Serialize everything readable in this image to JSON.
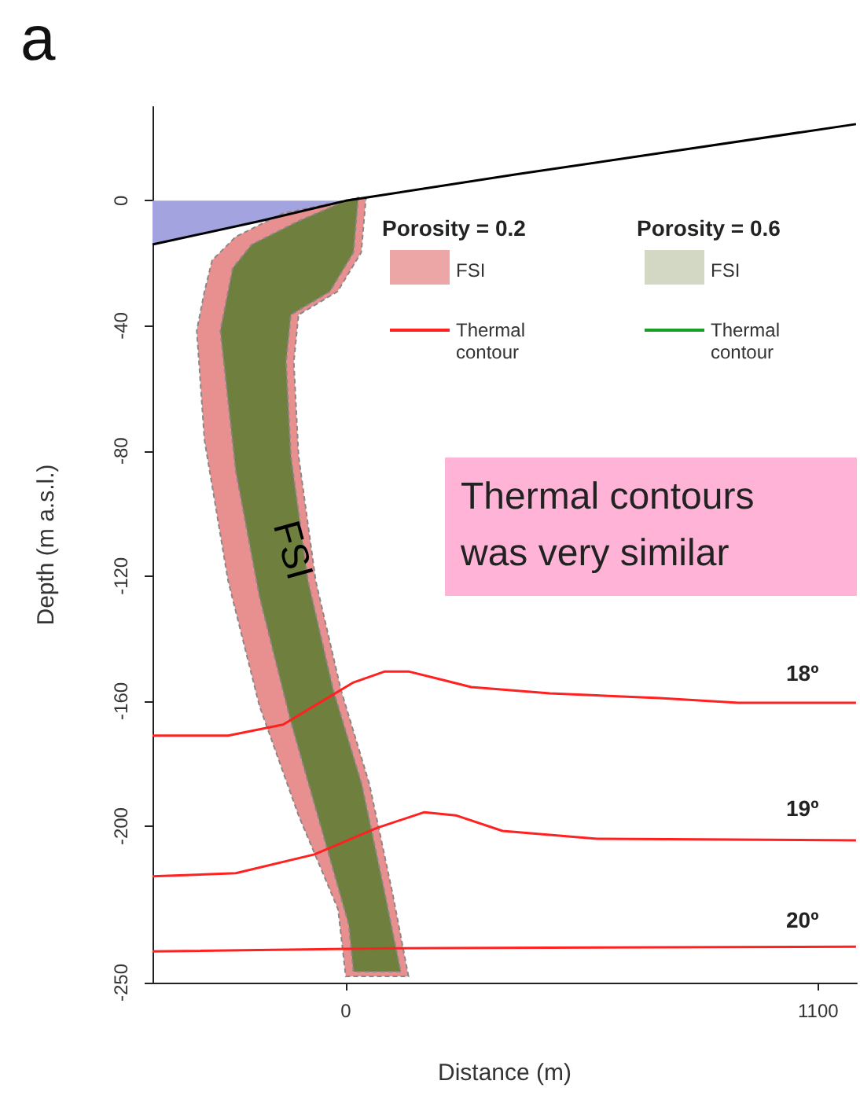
{
  "chart_data": {
    "type": "line",
    "title": "a",
    "xlabel": "Distance (m)",
    "ylabel": "Depth (m a.s.l.)",
    "xlim": [
      -450,
      1190
    ],
    "xticks": [
      0,
      1100
    ],
    "ylim": [
      -250,
      30
    ],
    "yticks": [
      0,
      -40,
      -80,
      -120,
      -160,
      -200,
      -250
    ],
    "grid": false,
    "legend": "top right",
    "marker": "none",
    "series": [
      {
        "type": "area",
        "color": "#a3a3e0",
        "x": [
          -450,
          0,
          -450
        ],
        "values": [
          0,
          0,
          -14
        ]
      },
      {
        "type": "line",
        "color": "#000000",
        "x": [
          -450,
          -200,
          0,
          400,
          1188
        ],
        "values": [
          -14,
          -6.5,
          0,
          8.5,
          24.5
        ]
      },
      {
        "type": "area",
        "name": "FSI",
        "color": "#e89090",
        "x": [
          -311,
          -329,
          -347,
          -329,
          -274,
          -201,
          -110,
          -18,
          0,
          146,
          109,
          55,
          -11,
          -70,
          -110,
          -121,
          -110,
          -19,
          36,
          47,
          -18,
          -146,
          -256
        ],
        "values": [
          -19,
          -29,
          -41.5,
          -76.5,
          -121.5,
          -161.5,
          -196.5,
          -226.5,
          -248,
          -248,
          -221.5,
          -186.5,
          -156.5,
          -121.5,
          -81.5,
          -51.5,
          -36.5,
          -29,
          -16.5,
          1,
          -0.5,
          -4,
          -11.5
        ]
      },
      {
        "name": "Thermal contour",
        "color": "#ff2020",
        "x": [
          -450,
          -274,
          -146,
          -73,
          18,
          91,
          146,
          219,
          292,
          475,
          731,
          914,
          1188
        ],
        "values": [
          -171,
          -171,
          -167.5,
          -161.5,
          -154,
          -150.5,
          -150.5,
          -153,
          -155.5,
          -157.5,
          -159,
          -160.5,
          -160.5
        ]
      },
      {
        "type": "area",
        "name": "FSI",
        "color": "#6e7f3e",
        "x": [
          -263,
          -274,
          -292,
          -256,
          -201,
          -128,
          -55,
          7,
          18,
          128,
          91,
          37,
          -29,
          -88,
          -128,
          -139,
          -128,
          -37,
          18,
          29,
          0,
          -110,
          -219
        ],
        "values": [
          -21.5,
          -29,
          -41.5,
          -86.5,
          -126.5,
          -166.5,
          -201.5,
          -231.5,
          -246.5,
          -246.5,
          -221.5,
          -186.5,
          -156.5,
          -121.5,
          -81.5,
          -51.5,
          -36.5,
          -29,
          -16.5,
          1,
          0,
          -6.5,
          -14
        ]
      },
      {
        "name": "Thermal contour",
        "color": "#1a9e2a"
      },
      {
        "color": "#ff2020",
        "x": [
          -450,
          -256,
          -73,
          73,
          183,
          256,
          365,
          585,
          1188
        ],
        "values": [
          -216,
          -215,
          -209,
          -200.5,
          -195.5,
          -196.5,
          -201.5,
          -204,
          -204.5
        ]
      },
      {
        "color": "#ff2020",
        "x": [
          -450,
          110,
          1188
        ],
        "values": [
          -240,
          -239,
          -238.5
        ]
      }
    ],
    "annotations": [
      "Porosity = 0.2",
      "Porosity = 0.6",
      "Thermal contours was very similar",
      "FSI",
      "18º",
      "19º",
      "20º"
    ]
  }
}
